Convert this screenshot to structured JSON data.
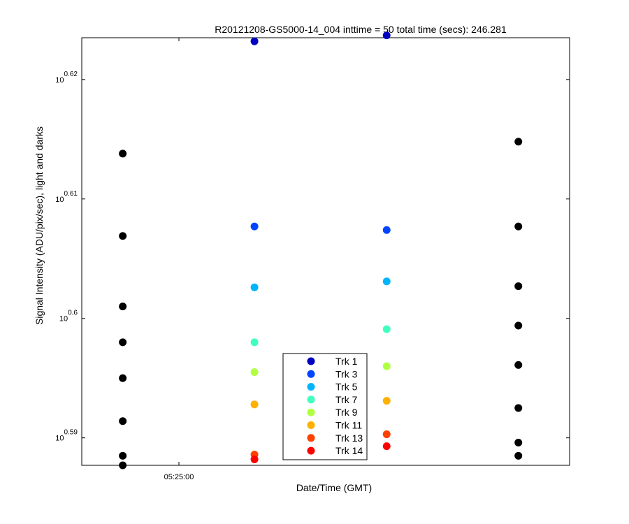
{
  "chart_data": {
    "type": "scatter",
    "title": "R20121208-GS5000-14_004 inttime = 50 total time (secs): 246.281",
    "xlabel": "Date/Time (GMT)",
    "ylabel": "Signal Intensity (ADU/pix/sec), light and darks",
    "x_ticks": [
      "05:25:00"
    ],
    "y_scale": "log",
    "y_ticks": [
      {
        "base": "10",
        "exp": "0.59",
        "value": 0.59
      },
      {
        "base": "10",
        "exp": "0.6",
        "value": 0.6
      },
      {
        "base": "10",
        "exp": "0.61",
        "value": 0.61
      },
      {
        "base": "10",
        "exp": "0.62",
        "value": 0.62
      }
    ],
    "ylim": [
      0.5877,
      0.6235
    ],
    "xlim": [
      0,
      1
    ],
    "grid": false,
    "legend_position": "lower-center",
    "series": [
      {
        "name": "Trk 1",
        "color": "#0000c0",
        "x": [
          0.354,
          0.625
        ],
        "y": [
          0.6232,
          0.6237
        ]
      },
      {
        "name": "Trk 3",
        "color": "#0044ff",
        "x": [
          0.354,
          0.625
        ],
        "y": [
          0.6077,
          0.6074
        ]
      },
      {
        "name": "Trk 5",
        "color": "#00b4ff",
        "x": [
          0.354,
          0.625
        ],
        "y": [
          0.6026,
          0.6031
        ]
      },
      {
        "name": "Trk 7",
        "color": "#40ffc0",
        "x": [
          0.354,
          0.625
        ],
        "y": [
          0.598,
          0.5991
        ]
      },
      {
        "name": "Trk 9",
        "color": "#b0ff40",
        "x": [
          0.354,
          0.625
        ],
        "y": [
          0.5955,
          0.596
        ]
      },
      {
        "name": "Trk 11",
        "color": "#ffb000",
        "x": [
          0.354,
          0.625
        ],
        "y": [
          0.5928,
          0.5931
        ]
      },
      {
        "name": "Trk 13",
        "color": "#ff4000",
        "x": [
          0.354,
          0.625
        ],
        "y": [
          0.5886,
          0.5903
        ]
      },
      {
        "name": "Trk 14",
        "color": "#ff0000",
        "x": [
          0.354,
          0.625
        ],
        "y": [
          0.5882,
          0.5893
        ]
      },
      {
        "color": "#000000",
        "x": [
          0.084,
          0.084,
          0.084,
          0.084,
          0.084,
          0.084,
          0.084,
          0.084
        ],
        "y": [
          0.6138,
          0.6069,
          0.601,
          0.598,
          0.595,
          0.5914,
          0.5885,
          0.5877
        ]
      },
      {
        "color": "#000000",
        "x": [
          0.895,
          0.895,
          0.895,
          0.895,
          0.895,
          0.895,
          0.895
        ],
        "y": [
          0.6148,
          0.6077,
          0.6027,
          0.5994,
          0.5961,
          0.5925,
          0.5896
        ]
      },
      {
        "color": "#000000",
        "x": [
          0.895
        ],
        "y": [
          0.5885
        ]
      }
    ]
  }
}
